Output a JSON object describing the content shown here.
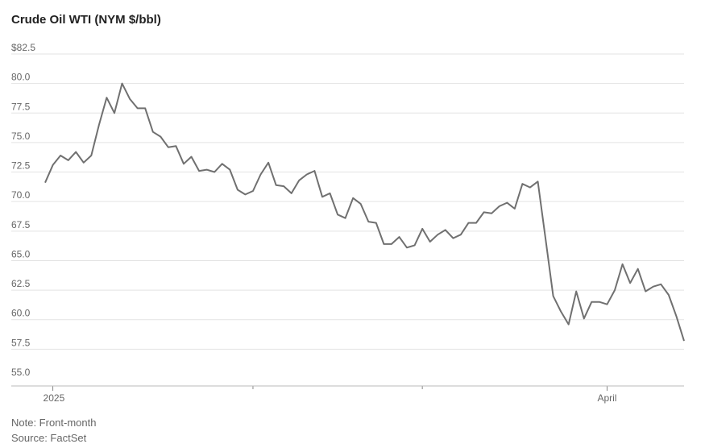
{
  "title": "Crude Oil WTI (NYM $/bbl)",
  "notes": {
    "note": "Note: Front-month",
    "source": "Source: FactSet"
  },
  "colors": {
    "line": "#707070",
    "grid": "#e3e3e3",
    "text": "#666666"
  },
  "chart_data": {
    "type": "line",
    "title": "Crude Oil WTI (NYM $/bbl)",
    "ylim": [
      55,
      82.5
    ],
    "yticks": [
      55,
      57.5,
      60,
      62.5,
      65,
      67.5,
      70,
      72.5,
      75,
      77.5,
      80,
      82.5
    ],
    "ytick_labels": [
      "55.0",
      "57.5",
      "60.0",
      "62.5",
      "65.0",
      "67.5",
      "70.0",
      "72.5",
      "75.0",
      "77.5",
      "80.0",
      "$82.5"
    ],
    "xticks": [
      {
        "label": "2025",
        "index": 1
      },
      {
        "label": "",
        "index": 27
      },
      {
        "label": "",
        "index": 49
      },
      {
        "label": "April",
        "index": 73
      }
    ],
    "grid": true,
    "legend": "none",
    "series": [
      {
        "values": [
          71.6,
          73.1,
          73.9,
          73.5,
          74.2,
          73.3,
          73.9,
          76.5,
          78.8,
          77.5,
          80.0,
          78.7,
          77.9,
          77.9,
          75.9,
          75.5,
          74.6,
          74.7,
          73.2,
          73.8,
          72.6,
          72.7,
          72.5,
          73.2,
          72.7,
          71.0,
          70.6,
          70.9,
          72.3,
          73.3,
          71.4,
          71.3,
          70.7,
          71.8,
          72.3,
          72.6,
          70.4,
          70.7,
          68.9,
          68.6,
          70.3,
          69.8,
          68.3,
          68.2,
          66.4,
          66.4,
          67.0,
          66.1,
          66.3,
          67.7,
          66.6,
          67.2,
          67.6,
          66.9,
          67.2,
          68.2,
          68.2,
          69.1,
          69.0,
          69.6,
          69.9,
          69.4,
          71.5,
          71.2,
          71.7,
          66.9,
          62.0,
          60.7,
          59.6,
          62.4,
          60.1,
          61.5,
          61.5,
          61.3,
          62.5,
          64.7,
          63.1,
          64.3,
          62.4,
          62.8,
          63.0,
          62.1,
          60.3,
          58.2
        ]
      }
    ]
  }
}
